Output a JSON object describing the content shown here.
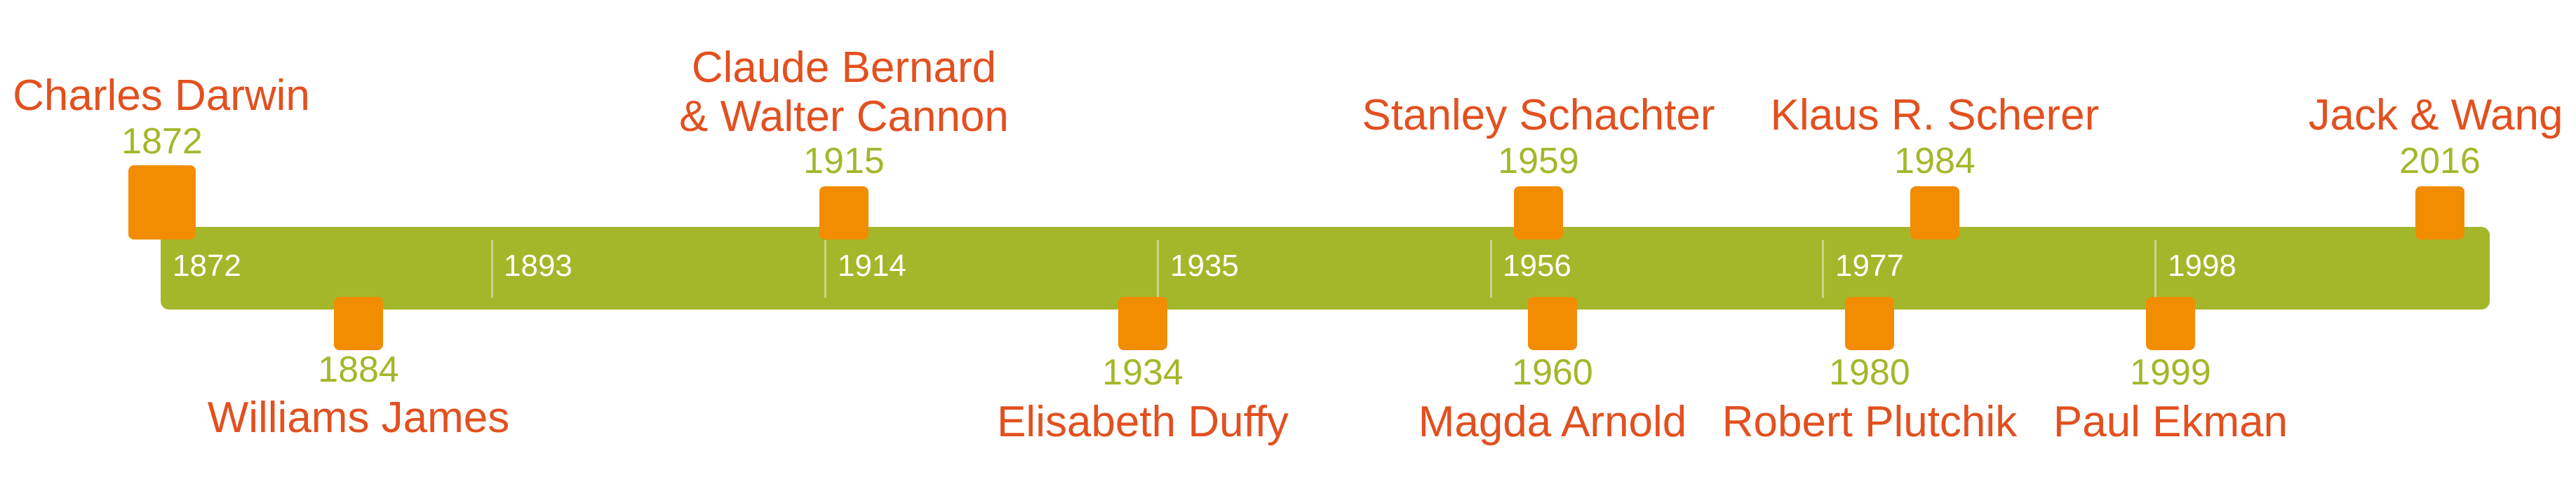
{
  "axis_ticks": [
    "1872",
    "1893",
    "1914",
    "1935",
    "1956",
    "1977",
    "1998"
  ],
  "events": [
    {
      "name": "Charles Darwin",
      "year": "1872"
    },
    {
      "name": "Williams James",
      "year": "1884"
    },
    {
      "name": [
        "Claude Bernard",
        "& Walter Cannon"
      ],
      "year": "1915"
    },
    {
      "name": "Elisabeth Duffy",
      "year": "1934"
    },
    {
      "name": "Stanley Schachter",
      "year": "1959"
    },
    {
      "name": "Magda Arnold",
      "year": "1960"
    },
    {
      "name": "Robert Plutchik",
      "year": "1980"
    },
    {
      "name": "Klaus R. Scherer",
      "year": "1984"
    },
    {
      "name": "Paul Ekman",
      "year": "1999"
    },
    {
      "name": "Jack & Wang",
      "year": "2016"
    }
  ],
  "colors": {
    "bar": "#a4b72a",
    "marker": "#f28c00",
    "name": "#e2501f",
    "year": "#a4b72a",
    "tick_label": "#ffffff"
  }
}
